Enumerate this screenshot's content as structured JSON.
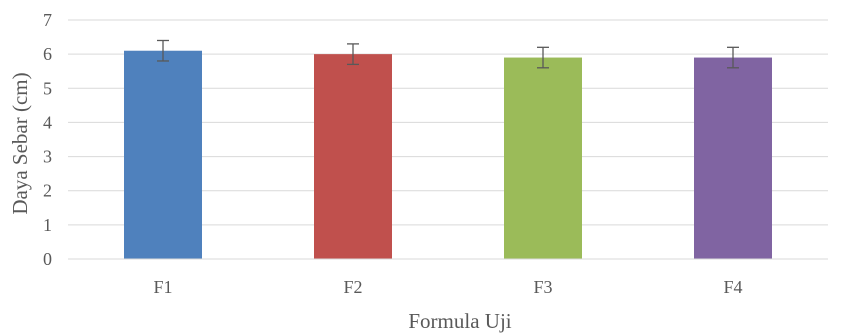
{
  "chart_data": {
    "type": "bar",
    "title": "",
    "xlabel": "Formula Uji",
    "ylabel": "Daya Sebar (cm)",
    "categories": [
      "F1",
      "F2",
      "F3",
      "F4"
    ],
    "values": [
      6.1,
      6.0,
      5.9,
      5.9
    ],
    "errors": [
      0.3,
      0.3,
      0.3,
      0.3
    ],
    "colors": [
      "#4f81bd",
      "#c0504d",
      "#9bbb59",
      "#8064a2"
    ],
    "ylim": [
      0,
      7
    ],
    "yticks": [
      "0",
      "1",
      "2",
      "3",
      "4",
      "5",
      "6",
      "7"
    ],
    "grid": true,
    "legend": "none"
  }
}
